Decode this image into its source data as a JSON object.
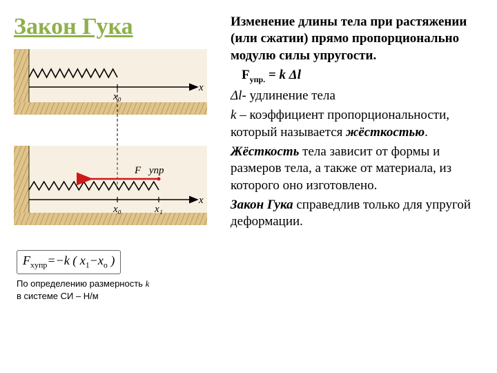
{
  "title_color": "#8fb04a",
  "title": "Закон Гука",
  "right": {
    "statement": "Изменение длины тела при растяжении (или сжатии) прямо пропорционально модулю силы упругости.",
    "formula_html": "F<sub>упр.</sub> = <span class='k'>k Δl</span>",
    "dl_def_html": "<span class='k'>Δl</span>- удлинение тела",
    "k_def_html": "<span class='k'>k</span> – коэффициент пропорциональности, который называется <b><i>жёсткостью</i></b>.",
    "stiffness_html": "<b><i>Жёсткость</i></b> тела зависит от формы и размеров тела, а также от материала, из которого оно изготовлено.",
    "law_html": "<b><i>Закон Гука</i></b> справедлив только для упругой деформации."
  },
  "diagram": {
    "bg_color": "#e0c48a",
    "wall_color": "#d8be84",
    "hatch_color": "#b39a68",
    "axis_color": "#000000",
    "spring_color": "#000000",
    "force_color": "#d01818",
    "label_fontsize": 15,
    "x0_label": "x₀",
    "x1_label": "x₁",
    "x_label": "x",
    "force_label": "F⃗упр"
  },
  "formula_box_html": "F<sub>xупр</sub>=&minus;k ( x<sub>1</sub>&minus;x<sub>o</sub> )",
  "caption1_html": "По определению размерность <span class='k'>k</span>",
  "caption2": "в системе СИ – Н/м"
}
